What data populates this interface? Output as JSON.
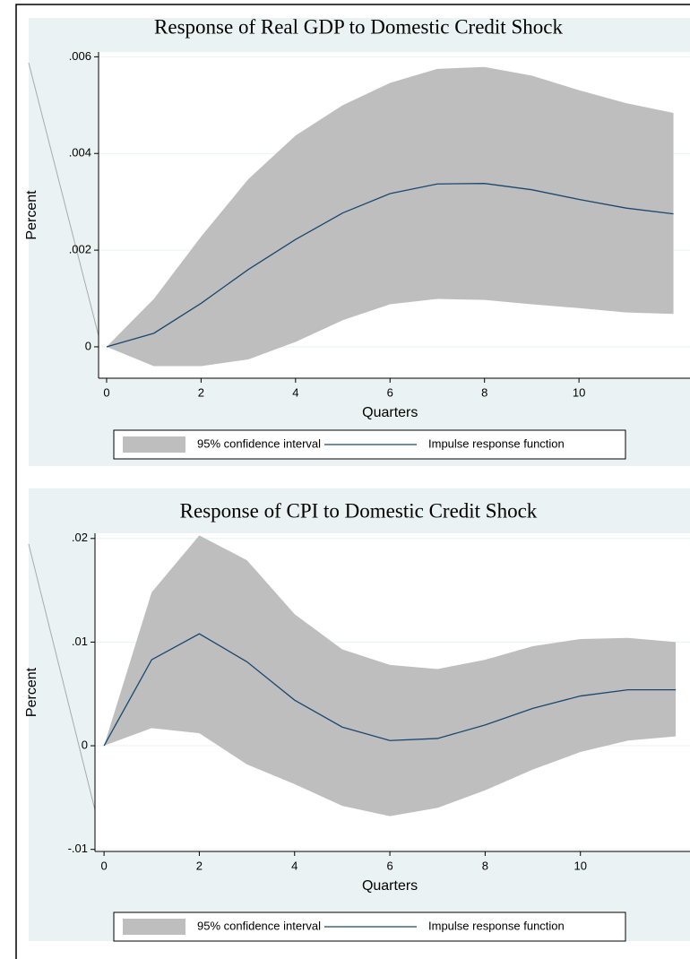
{
  "chart_data": [
    {
      "type": "line",
      "title": "Response of Real GDP to Domestic Credit Shock",
      "x_label": "Quarters",
      "y_label": "Percent",
      "x": [
        0,
        1,
        2,
        3,
        4,
        5,
        6,
        7,
        8,
        9,
        10,
        11,
        12
      ],
      "xlim": [
        -0.17,
        12.35
      ],
      "xticks": [
        0,
        2,
        4,
        6,
        8,
        10
      ],
      "ylim": [
        -0.00065,
        0.0061
      ],
      "yticks": [
        0,
        {
          "value": 0.002,
          "label": ".002"
        },
        {
          "value": 0.004,
          "label": ".004"
        },
        {
          "value": 0.006,
          "label": ".006"
        }
      ],
      "grid": true,
      "series": [
        {
          "name": "95% confidence interval",
          "color": "#bebebe",
          "lower": [
            0,
            -0.0004,
            -0.0004,
            -0.00026,
            0.0001,
            0.00055,
            0.00088,
            0.00099,
            0.00097,
            0.00088,
            0.0008,
            0.00071,
            0.00068
          ],
          "upper": [
            0,
            0.00099,
            0.00228,
            0.00347,
            0.00437,
            0.005,
            0.00546,
            0.00575,
            0.00579,
            0.00561,
            0.00531,
            0.00504,
            0.00484
          ]
        },
        {
          "name": "Impulse response function",
          "color": "#1a476f",
          "values": [
            0,
            0.00028,
            0.0009,
            0.0016,
            0.00222,
            0.00277,
            0.00317,
            0.00337,
            0.00338,
            0.00325,
            0.00305,
            0.00287,
            0.00275
          ]
        }
      ]
    },
    {
      "type": "line",
      "title": "Response of CPI to Domestic Credit Shock",
      "x_label": "Quarters",
      "y_label": "Percent",
      "x": [
        0,
        1,
        2,
        3,
        4,
        5,
        6,
        7,
        8,
        9,
        10,
        11,
        12
      ],
      "xlim": [
        -0.19,
        12.3
      ],
      "xticks": [
        0,
        2,
        4,
        6,
        8,
        10
      ],
      "ylim": [
        -0.0102,
        0.0205
      ],
      "yticks": [
        {
          "value": -0.01,
          "label": "-.01"
        },
        0,
        {
          "value": 0.01,
          "label": ".01"
        },
        {
          "value": 0.02,
          "label": ".02"
        }
      ],
      "grid": true,
      "series": [
        {
          "name": "95% confidence interval",
          "color": "#bebebe",
          "lower": [
            0,
            0.0017,
            0.0012,
            -0.0018,
            -0.0037,
            -0.0058,
            -0.0068,
            -0.006,
            -0.0043,
            -0.0023,
            -0.0006,
            0.0005,
            0.0009
          ],
          "upper": [
            0,
            0.0148,
            0.0203,
            0.0179,
            0.0127,
            0.0093,
            0.0078,
            0.0074,
            0.0083,
            0.0096,
            0.0103,
            0.0104,
            0.01
          ]
        },
        {
          "name": "Impulse response function",
          "color": "#1a476f",
          "values": [
            0,
            0.0083,
            0.0108,
            0.0081,
            0.0044,
            0.0018,
            0.0005,
            0.0007,
            0.002,
            0.0036,
            0.0048,
            0.0054,
            0.0054
          ]
        }
      ]
    }
  ]
}
